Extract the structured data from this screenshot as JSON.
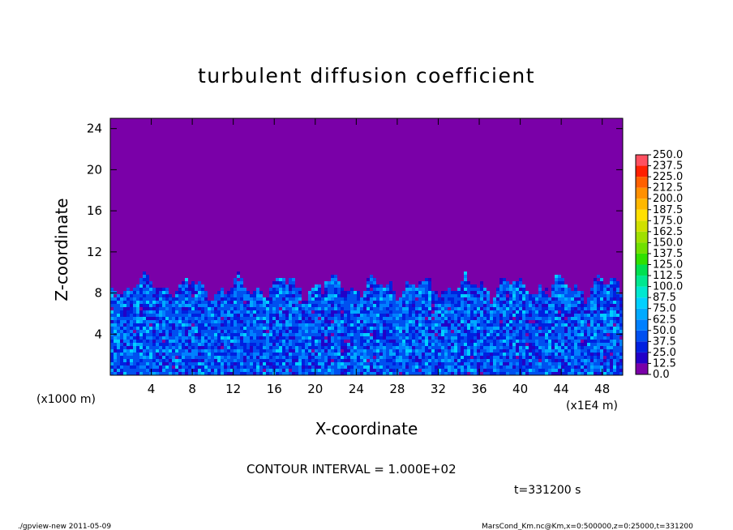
{
  "chart_data": {
    "type": "heatmap",
    "title": "turbulent diffusion coefficient",
    "xlabel": "X-coordinate",
    "ylabel": "Z-coordinate",
    "x_unit": "(x1E4 m)",
    "y_unit": "(x1000 m)",
    "xlim": [
      0,
      50
    ],
    "ylim": [
      0,
      25
    ],
    "x_ticks": [
      4,
      8,
      12,
      16,
      20,
      24,
      28,
      32,
      36,
      40,
      44,
      48
    ],
    "y_ticks": [
      4,
      8,
      12,
      16,
      20,
      24
    ],
    "colorbar": {
      "levels": [
        "0.0",
        "12.5",
        "25.0",
        "37.5",
        "50.0",
        "62.5",
        "75.0",
        "87.5",
        "100.0",
        "112.5",
        "125.0",
        "137.5",
        "150.0",
        "162.5",
        "175.0",
        "187.5",
        "200.0",
        "212.5",
        "225.0",
        "237.5",
        "250.0"
      ],
      "colors": [
        "#7a00a8",
        "#2200c8",
        "#0020e0",
        "#0050f0",
        "#0080ff",
        "#00aaff",
        "#00d0ff",
        "#00e8d0",
        "#00e890",
        "#00e050",
        "#30e000",
        "#70e000",
        "#a0e000",
        "#d0e000",
        "#ffe000",
        "#ffb800",
        "#ff9000",
        "#ff6000",
        "#ff2000",
        "#ff5060"
      ]
    },
    "background_color": "#7a00a8",
    "turbulent_layer_top_approx": 8.5,
    "contour_interval_text": "CONTOUR INTERVAL = 1.000E+02",
    "time_text": "t=331200 s"
  },
  "footer": {
    "left": "./gpview-new  2011-05-09",
    "right": "MarsCond_Km.nc@Km,x=0:500000,z=0:25000,t=331200"
  }
}
